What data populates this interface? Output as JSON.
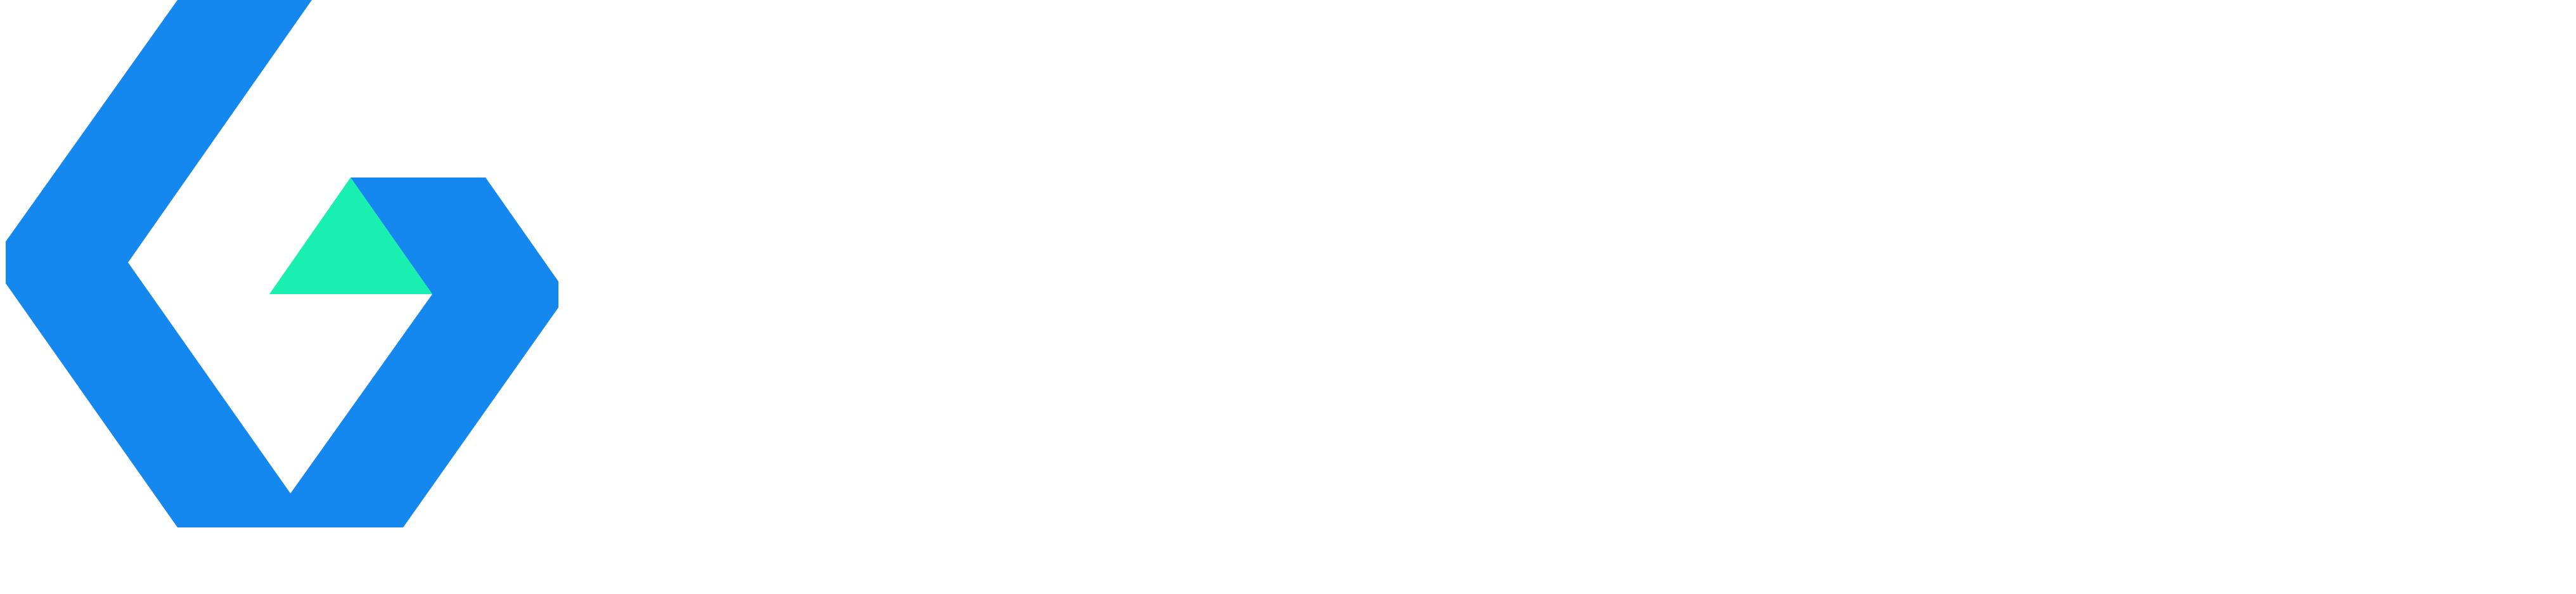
{
  "colors": {
    "background": "#ffffff",
    "logo_primary": "#1588F0",
    "logo_accent": "#19F0B0"
  },
  "logo": {
    "icon": "abstract-hexagon-logo-icon"
  }
}
